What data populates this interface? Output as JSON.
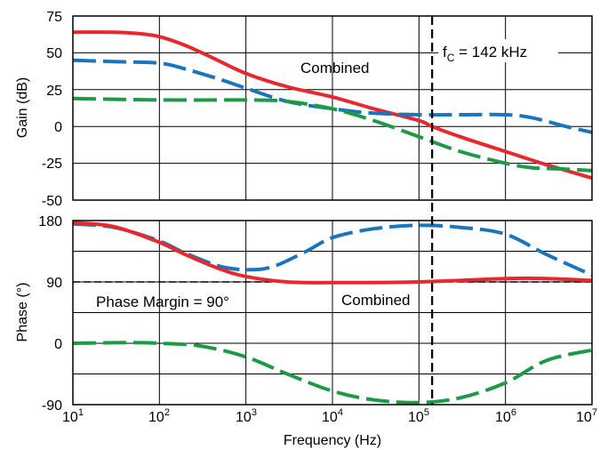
{
  "chart_data": [
    {
      "type": "line",
      "ylabel": "Gain (dB)",
      "xlabel": "",
      "xscale": "log",
      "xlim": [
        10,
        10000000
      ],
      "ylim": [
        -50,
        75
      ],
      "yticks": [
        "75",
        "50",
        "25",
        "0",
        "-25",
        "-50"
      ],
      "grid": true,
      "annotations": {
        "combined": "Combined",
        "fc_prefix": "f",
        "fc_sub": "C",
        "fc_rest": " = 142 kHz"
      },
      "crossover_x": 142000,
      "series": [
        {
          "color": "#e8282e",
          "style": "solid",
          "x": [
            10,
            30,
            60,
            100,
            200,
            400,
            1000,
            3000,
            10000,
            30000,
            100000,
            142000,
            300000,
            1000000,
            3000000,
            10000000
          ],
          "y": [
            64,
            64,
            63,
            61,
            55,
            47,
            36,
            27,
            20,
            12,
            4,
            0,
            -7,
            -17,
            -26,
            -35
          ]
        },
        {
          "color": "#1a75bc",
          "style": "dashed",
          "x": [
            10,
            30,
            100,
            200,
            500,
            1000,
            3000,
            10000,
            30000,
            100000,
            300000,
            1000000,
            2000000,
            5000000,
            10000000
          ],
          "y": [
            45,
            44,
            43,
            39,
            32,
            26,
            17,
            12,
            9,
            8,
            8,
            8,
            6,
            0,
            -4
          ]
        },
        {
          "color": "#1c9a48",
          "style": "dashed",
          "x": [
            10,
            100,
            1000,
            3000,
            10000,
            30000,
            100000,
            300000,
            1000000,
            2000000,
            5000000,
            10000000
          ],
          "y": [
            19,
            18,
            18,
            17,
            12,
            4,
            -7,
            -17,
            -25,
            -28,
            -29,
            -30
          ]
        }
      ]
    },
    {
      "type": "line",
      "ylabel": "Phase (°)",
      "xlabel": "Frequency (Hz)",
      "xscale": "log",
      "xlim": [
        10,
        10000000
      ],
      "ylim": [
        -90,
        180
      ],
      "yticks": [
        "180",
        "90",
        "0",
        "-90"
      ],
      "xticks": [
        {
          "base": "10",
          "exp": "1"
        },
        {
          "base": "10",
          "exp": "2"
        },
        {
          "base": "10",
          "exp": "3"
        },
        {
          "base": "10",
          "exp": "4"
        },
        {
          "base": "10",
          "exp": "5"
        },
        {
          "base": "10",
          "exp": "6"
        },
        {
          "base": "10",
          "exp": "7"
        }
      ],
      "grid": true,
      "reference_y": 90,
      "annotations": {
        "phase_margin": "Phase Margin = 90°",
        "combined": "Combined"
      },
      "series": [
        {
          "color": "#1a75bc",
          "style": "dashed",
          "x": [
            10,
            30,
            100,
            200,
            500,
            1000,
            2000,
            5000,
            10000,
            30000,
            100000,
            300000,
            1000000,
            3000000,
            10000000
          ],
          "y": [
            175,
            170,
            150,
            132,
            113,
            108,
            112,
            135,
            155,
            168,
            173,
            170,
            160,
            130,
            100
          ]
        },
        {
          "color": "#e8282e",
          "style": "solid",
          "x": [
            10,
            30,
            100,
            200,
            500,
            1000,
            3000,
            10000,
            100000,
            1000000,
            3000000,
            10000000
          ],
          "y": [
            177,
            171,
            148,
            130,
            109,
            98,
            90,
            89,
            90,
            95,
            95,
            92
          ]
        },
        {
          "color": "#1c9a48",
          "style": "dashed",
          "x": [
            10,
            50,
            100,
            300,
            1000,
            3000,
            10000,
            30000,
            100000,
            300000,
            1000000,
            3000000,
            10000000
          ],
          "y": [
            0,
            1,
            0,
            -4,
            -20,
            -45,
            -70,
            -83,
            -87,
            -80,
            -58,
            -25,
            -10
          ]
        }
      ]
    }
  ]
}
